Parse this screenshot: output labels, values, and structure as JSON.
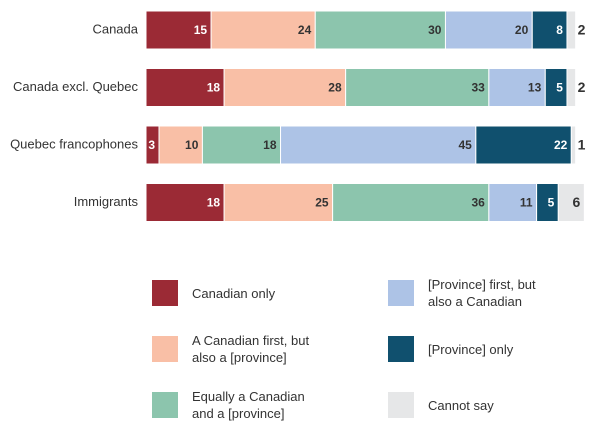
{
  "chart_data": {
    "type": "stacked-bar",
    "categories": [
      "Canada",
      "Canada excl. Quebec",
      "Quebec francophones",
      "Immigrants"
    ],
    "series": [
      {
        "name": "Canadian only",
        "color": "#9b2a35",
        "values": [
          15,
          18,
          3,
          18
        ]
      },
      {
        "name": "A Canadian first, but\nalso a [province]",
        "color": "#f9bfa6",
        "values": [
          24,
          28,
          10,
          25
        ]
      },
      {
        "name": "Equally a Canadian\nand a [province]",
        "color": "#8cc5ad",
        "values": [
          30,
          33,
          18,
          36
        ]
      },
      {
        "name": "[Province] first, but\n also a Canadian",
        "color": "#adc3e6",
        "values": [
          20,
          13,
          45,
          11
        ]
      },
      {
        "name": "[Province] only",
        "color": "#10506e",
        "values": [
          8,
          5,
          22,
          5
        ]
      },
      {
        "name": "Cannot say",
        "color": "#e6e7e8",
        "values": [
          2,
          2,
          1,
          6
        ]
      }
    ]
  }
}
